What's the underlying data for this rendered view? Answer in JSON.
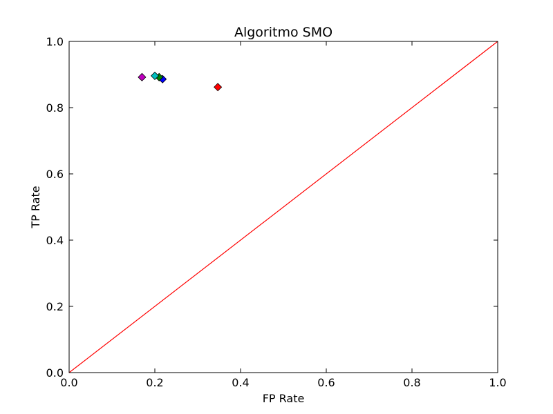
{
  "chart_data": {
    "type": "scatter",
    "title": "Algoritmo SMO",
    "xlabel": "FP Rate",
    "ylabel": "TP Rate",
    "xlim": [
      0.0,
      1.0
    ],
    "ylim": [
      0.0,
      1.0
    ],
    "xticks": [
      "0.0",
      "0.2",
      "0.4",
      "0.6",
      "0.8",
      "1.0"
    ],
    "yticks": [
      "0.0",
      "0.2",
      "0.4",
      "0.6",
      "0.8",
      "1.0"
    ],
    "grid": false,
    "reference_line": {
      "x": [
        0.0,
        1.0
      ],
      "y": [
        0.0,
        1.0
      ],
      "color": "#ff0000"
    },
    "points": [
      {
        "x": 0.347,
        "y": 0.862,
        "color": "#ff0000",
        "marker": "diamond"
      },
      {
        "x": 0.218,
        "y": 0.886,
        "color": "#0000ff",
        "marker": "diamond"
      },
      {
        "x": 0.21,
        "y": 0.892,
        "color": "#008000",
        "marker": "diamond"
      },
      {
        "x": 0.2,
        "y": 0.896,
        "color": "#00bfbf",
        "marker": "diamond"
      },
      {
        "x": 0.17,
        "y": 0.892,
        "color": "#bf00bf",
        "marker": "diamond"
      }
    ]
  }
}
